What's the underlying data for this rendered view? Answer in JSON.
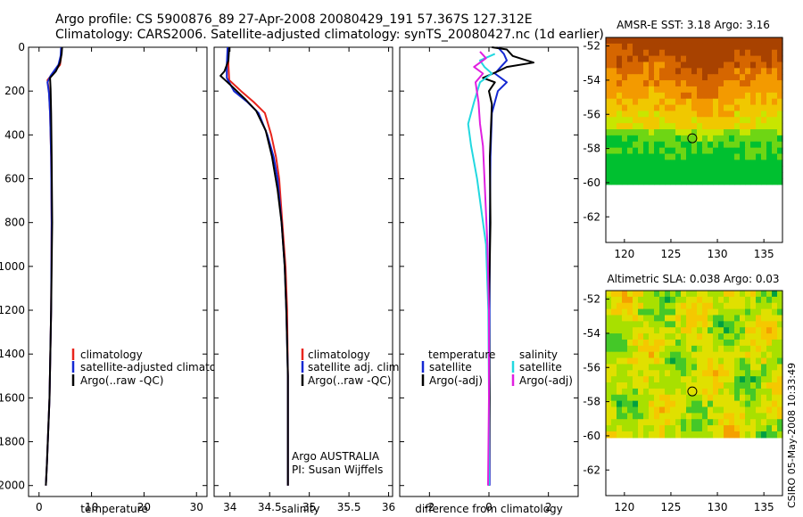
{
  "figure": {
    "title_line1": "Argo profile: CS 5900876_89 27-Apr-2008 20080429_191 57.367S 127.312E",
    "title_line2": "Climatology: CARS2006. Satellite-adjusted climatology: synTS_20080427.nc (1d earlier)",
    "credit": "CSIRO 05-May-2008 10:33:49"
  },
  "colors": {
    "climatology": "#e8241c",
    "satellite": "#1428d2",
    "argo": "#000000",
    "sal_satellite": "#22d8e0",
    "sal_argo": "#e020e0"
  },
  "chart_data": [
    {
      "type": "line",
      "id": "temperature",
      "xlabel": "temperature",
      "ylabel": "",
      "xlim": [
        -2,
        32
      ],
      "ylim": [
        2050,
        0
      ],
      "xticks": [
        0,
        10,
        20,
        30
      ],
      "yticks": [
        0,
        200,
        400,
        600,
        800,
        1000,
        1200,
        1400,
        1600,
        1800,
        2000
      ],
      "legend": [
        "climatology",
        "satellite-adjusted climatology",
        "Argo(..raw -QC)"
      ],
      "series": [
        {
          "name": "climatology",
          "color": "#e8241c",
          "points": [
            [
              4.3,
              0
            ],
            [
              4.2,
              40
            ],
            [
              4.0,
              80
            ],
            [
              2.6,
              120
            ],
            [
              1.6,
              150
            ],
            [
              1.9,
              200
            ],
            [
              2.1,
              300
            ],
            [
              2.3,
              500
            ],
            [
              2.4,
              800
            ],
            [
              2.3,
              1200
            ],
            [
              2.0,
              1600
            ],
            [
              1.5,
              1900
            ],
            [
              1.3,
              2000
            ]
          ]
        },
        {
          "name": "satellite-adjusted climatology",
          "color": "#1428d2",
          "points": [
            [
              4.2,
              0
            ],
            [
              4.1,
              40
            ],
            [
              3.7,
              80
            ],
            [
              2.2,
              130
            ],
            [
              1.6,
              160
            ],
            [
              1.9,
              210
            ],
            [
              2.1,
              300
            ],
            [
              2.3,
              500
            ],
            [
              2.4,
              800
            ],
            [
              2.3,
              1200
            ],
            [
              2.0,
              1600
            ],
            [
              1.5,
              1900
            ],
            [
              1.3,
              2000
            ]
          ]
        },
        {
          "name": "Argo(..raw -QC)",
          "color": "#000000",
          "points": [
            [
              4.4,
              0
            ],
            [
              4.3,
              30
            ],
            [
              4.0,
              70
            ],
            [
              3.2,
              110
            ],
            [
              2.1,
              140
            ],
            [
              2.2,
              190
            ],
            [
              2.3,
              300
            ],
            [
              2.4,
              500
            ],
            [
              2.5,
              800
            ],
            [
              2.3,
              1200
            ],
            [
              2.0,
              1600
            ],
            [
              1.5,
              1900
            ],
            [
              1.3,
              2000
            ]
          ]
        }
      ]
    },
    {
      "type": "line",
      "id": "salinity",
      "xlabel": "salinity",
      "ylabel": "",
      "xlim": [
        33.8,
        36.05
      ],
      "ylim": [
        2050,
        0
      ],
      "xticks": [
        34,
        34.5,
        35,
        35.5,
        36
      ],
      "legend": [
        "climatology",
        "satellite adj. clim.",
        "Argo(..raw -QC)"
      ],
      "annotation_line1": "Argo AUSTRALIA",
      "annotation_line2": "PI: Susan Wijffels",
      "series": [
        {
          "name": "climatology",
          "color": "#e8241c",
          "points": [
            [
              33.98,
              0
            ],
            [
              33.98,
              80
            ],
            [
              33.99,
              150
            ],
            [
              34.14,
              200
            ],
            [
              34.3,
              250
            ],
            [
              34.44,
              300
            ],
            [
              34.52,
              400
            ],
            [
              34.58,
              500
            ],
            [
              34.62,
              600
            ],
            [
              34.66,
              800
            ],
            [
              34.7,
              1000
            ],
            [
              34.72,
              1200
            ],
            [
              34.73,
              1500
            ],
            [
              34.73,
              2000
            ]
          ]
        },
        {
          "name": "satellite adj. clim.",
          "color": "#1428d2",
          "points": [
            [
              33.97,
              0
            ],
            [
              33.96,
              80
            ],
            [
              33.96,
              140
            ],
            [
              34.05,
              200
            ],
            [
              34.22,
              250
            ],
            [
              34.36,
              300
            ],
            [
              34.47,
              400
            ],
            [
              34.55,
              500
            ],
            [
              34.6,
              600
            ],
            [
              34.65,
              800
            ],
            [
              34.69,
              1000
            ],
            [
              34.71,
              1200
            ],
            [
              34.73,
              1500
            ],
            [
              34.73,
              2000
            ]
          ]
        },
        {
          "name": "Argo(..raw -QC)",
          "color": "#000000",
          "points": [
            [
              33.99,
              0
            ],
            [
              33.98,
              60
            ],
            [
              33.93,
              110
            ],
            [
              33.88,
              130
            ],
            [
              34.03,
              180
            ],
            [
              34.2,
              240
            ],
            [
              34.33,
              290
            ],
            [
              34.45,
              380
            ],
            [
              34.53,
              500
            ],
            [
              34.6,
              650
            ],
            [
              34.65,
              800
            ],
            [
              34.69,
              1000
            ],
            [
              34.71,
              1200
            ],
            [
              34.73,
              1500
            ],
            [
              34.73,
              2000
            ]
          ]
        }
      ]
    },
    {
      "type": "line",
      "id": "difference",
      "xlabel": "difference from climatology",
      "ylabel": "",
      "xlim": [
        -3,
        3
      ],
      "ylim": [
        2050,
        0
      ],
      "xticks": [
        -2,
        0,
        2
      ],
      "legend_temperature_heading": "temperature",
      "legend_salinity_heading": "salinity",
      "legend_temperature": [
        "satellite",
        "Argo(-adj)"
      ],
      "legend_salinity": [
        "satellite",
        "Argo(-adj)"
      ],
      "series": [
        {
          "name": "temperature satellite",
          "color": "#1428d2",
          "points": [
            [
              0.3,
              0
            ],
            [
              0.5,
              30
            ],
            [
              0.6,
              60
            ],
            [
              0.4,
              90
            ],
            [
              0.2,
              120
            ],
            [
              0.6,
              160
            ],
            [
              0.3,
              200
            ],
            [
              0.1,
              300
            ],
            [
              0.05,
              500
            ],
            [
              0.03,
              800
            ],
            [
              0.02,
              1200
            ],
            [
              0.02,
              1600
            ],
            [
              0.02,
              2000
            ]
          ]
        },
        {
          "name": "temperature Argo(-adj)",
          "color": "#000000",
          "points": [
            [
              0.1,
              0
            ],
            [
              0.6,
              10
            ],
            [
              0.8,
              40
            ],
            [
              1.5,
              70
            ],
            [
              0.6,
              90
            ],
            [
              0.3,
              110
            ],
            [
              -0.2,
              140
            ],
            [
              0.2,
              160
            ],
            [
              0.0,
              200
            ],
            [
              0.1,
              260
            ],
            [
              0.03,
              500
            ],
            [
              0.05,
              800
            ],
            [
              0.0,
              1200
            ],
            [
              0.02,
              1600
            ],
            [
              0.0,
              2000
            ]
          ]
        },
        {
          "name": "salinity satellite",
          "color": "#22d8e0",
          "points": [
            [
              0.2,
              30
            ],
            [
              -0.3,
              60
            ],
            [
              -0.15,
              90
            ],
            [
              0.1,
              120
            ],
            [
              -0.3,
              160
            ],
            [
              -0.5,
              250
            ],
            [
              -0.7,
              350
            ],
            [
              -0.6,
              450
            ],
            [
              -0.4,
              600
            ],
            [
              -0.1,
              900
            ],
            [
              -0.02,
              1200
            ],
            [
              0.0,
              1600
            ],
            [
              0.0,
              2000
            ]
          ]
        },
        {
          "name": "salinity Argo(-adj)",
          "color": "#e020e0",
          "points": [
            [
              -0.3,
              20
            ],
            [
              -0.1,
              50
            ],
            [
              -0.5,
              90
            ],
            [
              -0.2,
              120
            ],
            [
              -0.45,
              160
            ],
            [
              -0.35,
              250
            ],
            [
              -0.3,
              350
            ],
            [
              -0.2,
              450
            ],
            [
              -0.15,
              600
            ],
            [
              -0.05,
              900
            ],
            [
              0.0,
              1200
            ],
            [
              0.0,
              1600
            ],
            [
              -0.03,
              2000
            ]
          ]
        }
      ]
    },
    {
      "type": "heatmap",
      "id": "sst_map",
      "title": "AMSR-E SST: 3.18 Argo: 3.16",
      "xlim": [
        118,
        137
      ],
      "ylim": [
        -63.5,
        -51.5
      ],
      "xticks": [
        120,
        125,
        130,
        135
      ],
      "yticks": [
        -52,
        -54,
        -56,
        -58,
        -60,
        -62
      ],
      "data_top": -51.5,
      "data_bottom": -60.1,
      "marker": {
        "lon": 127.3,
        "lat": -57.4
      },
      "palette": [
        "#00c030",
        "#6ed614",
        "#c8e600",
        "#f0c800",
        "#f39a00",
        "#d66600",
        "#a84200"
      ]
    },
    {
      "type": "heatmap",
      "id": "sla_map",
      "title": "Altimetric SLA: 0.038 Argo: 0.03",
      "xlim": [
        118,
        137
      ],
      "ylim": [
        -63.5,
        -51.5
      ],
      "xticks": [
        120,
        125,
        130,
        135
      ],
      "yticks": [
        -52,
        -54,
        -56,
        -58,
        -60,
        -62
      ],
      "data_top": -51.5,
      "data_bottom": -60.1,
      "marker": {
        "lon": 127.3,
        "lat": -57.4
      },
      "palette": [
        "#00a040",
        "#44c828",
        "#a8e000",
        "#e0e000",
        "#f5c800",
        "#f5a000"
      ]
    }
  ]
}
